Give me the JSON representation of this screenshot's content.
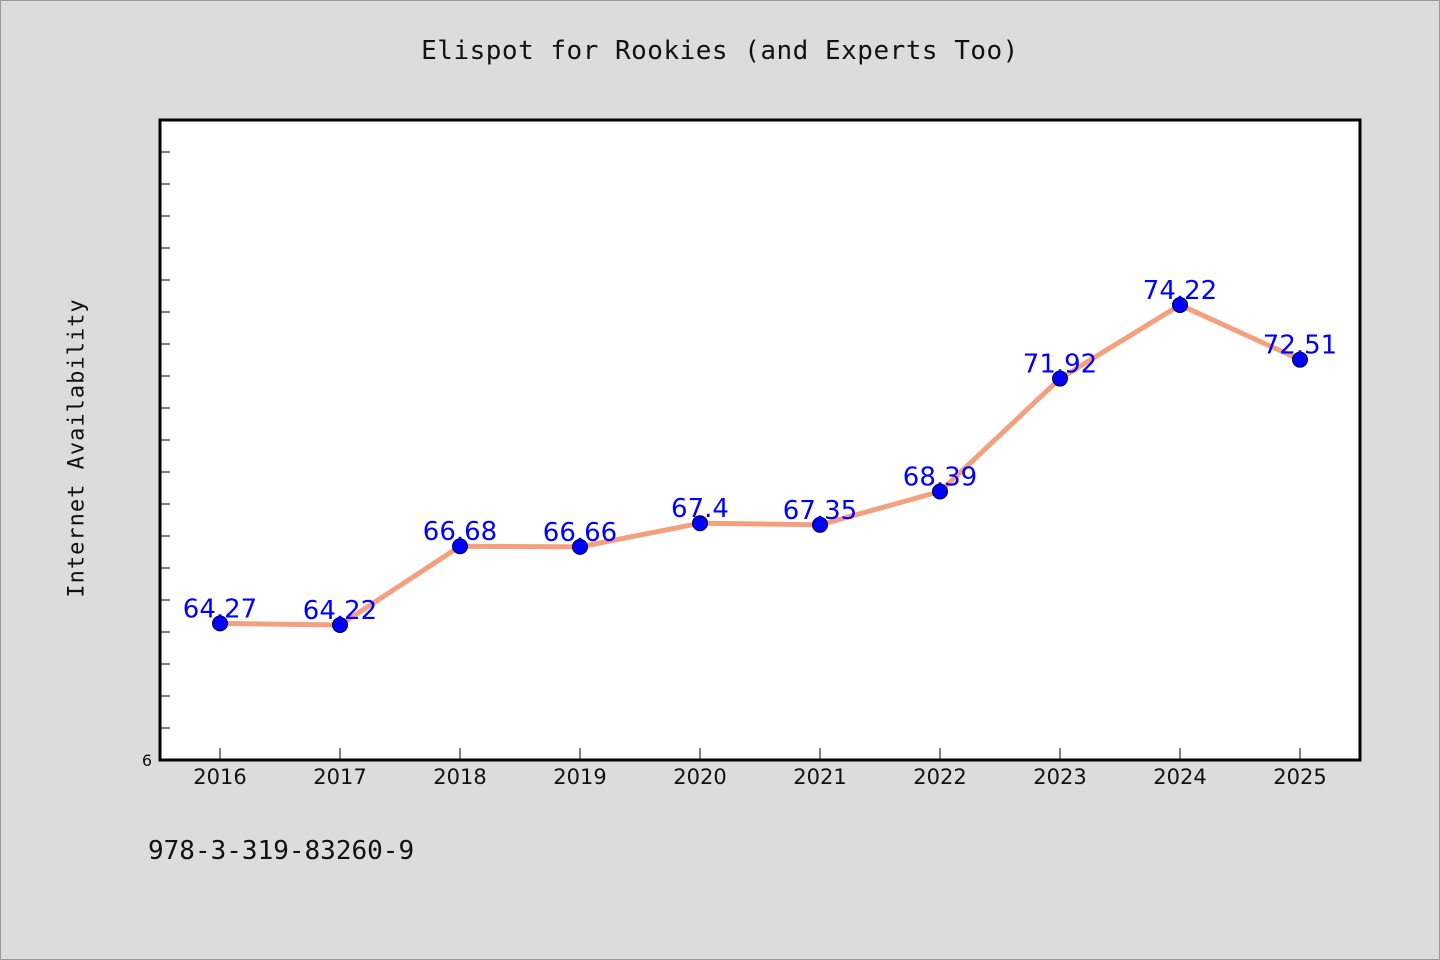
{
  "title": "Elispot for Rookies (and Experts Too)",
  "footer_code": "978-3-319-83260-9",
  "colors": {
    "background": "#dcdcdc",
    "plot_background": "#ffffff",
    "line": "#f4a07e",
    "marker": "#0000ff",
    "data_label": "#0000ff"
  },
  "chart_data": {
    "type": "line",
    "title": "Elispot for Rookies (and Experts Too)",
    "xlabel": "",
    "ylabel": "Internet Availability",
    "categories": [
      "2016",
      "2017",
      "2018",
      "2019",
      "2020",
      "2021",
      "2022",
      "2023",
      "2024",
      "2025"
    ],
    "series": [
      {
        "values": [
          64.27,
          64.22,
          66.68,
          66.66,
          67.4,
          67.35,
          68.39,
          71.92,
          74.22,
          72.51
        ]
      }
    ],
    "ylim": [
      60,
      80
    ],
    "y_tick_labels": [
      "6"
    ],
    "data_labels": [
      "64.27",
      "64.22",
      "66.68",
      "66.66",
      "67.4",
      "67.35",
      "68.39",
      "71.92",
      "74.22",
      "72.51"
    ],
    "grid": false,
    "legend": "none"
  }
}
